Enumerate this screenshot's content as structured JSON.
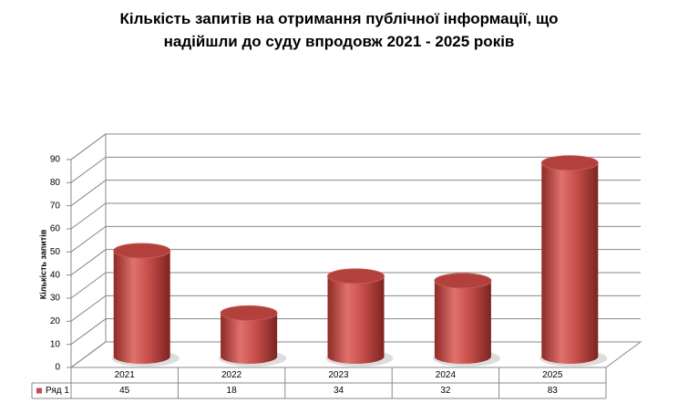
{
  "chart_data": {
    "type": "bar",
    "title": "Кількість  запитів на отримання публічної інформації, що надійшли до суду впродовж 2021 - 2025 років",
    "y_label": "Кількість запитів",
    "categories": [
      "2021",
      "2022",
      "2023",
      "2024",
      "2025"
    ],
    "series": [
      {
        "name": "Ряд 1",
        "color": "#c0504d",
        "values": [
          45,
          18,
          34,
          32,
          83
        ]
      }
    ],
    "ylim": [
      0,
      90
    ],
    "yticks": [
      0,
      10,
      20,
      30,
      40,
      50,
      60,
      70,
      80,
      90
    ],
    "grid": true
  }
}
